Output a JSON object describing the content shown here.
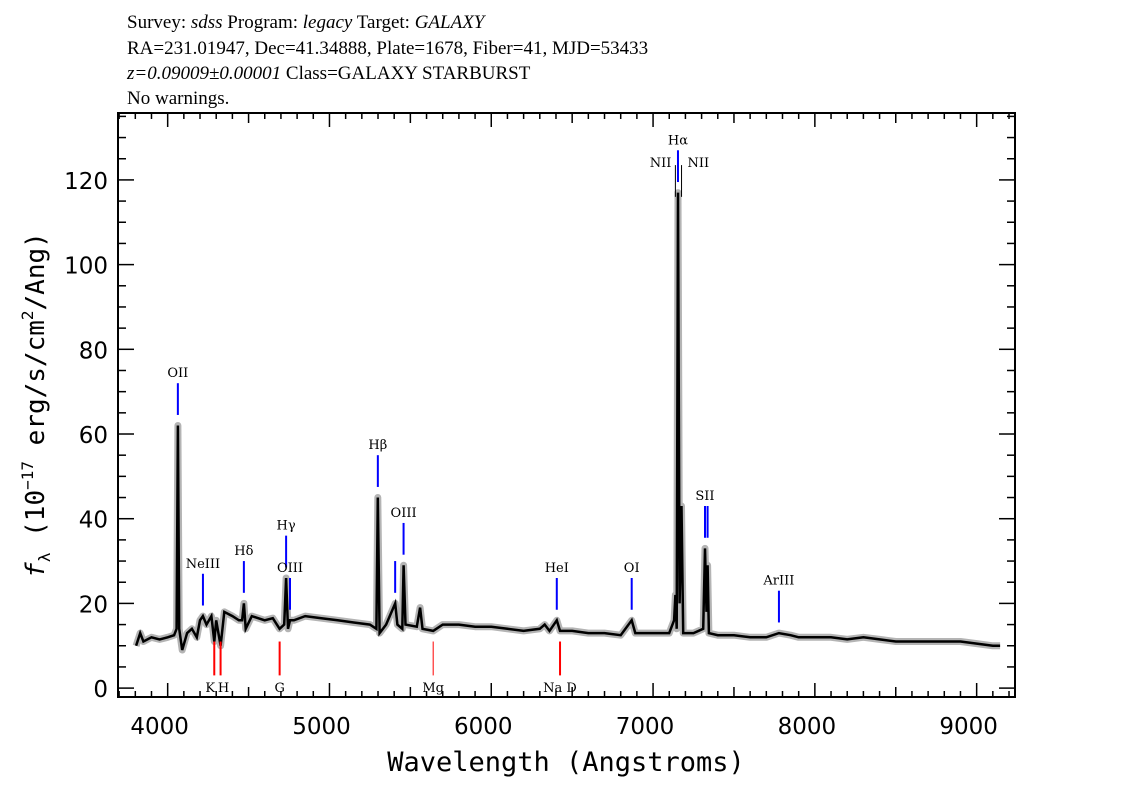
{
  "header": {
    "line1": [
      {
        "t": "Survey: ",
        "i": false
      },
      {
        "t": "sdss",
        "i": true
      },
      {
        "t": " Program: ",
        "i": false
      },
      {
        "t": "legacy",
        "i": true
      },
      {
        "t": " Target: ",
        "i": false
      },
      {
        "t": "GALAXY",
        "i": true
      }
    ],
    "line2": "RA=231.01947, Dec=41.34888, Plate=1678, Fiber=41, MJD=53433",
    "line3_z": "z=0.09009±0.00001",
    "line3_class": " Class=GALAXY STARBURST",
    "line4": "No warnings."
  },
  "chart_data": {
    "type": "line",
    "xlabel": "Wavelength (Angstroms)",
    "ylabel": {
      "f": "f",
      "sub": "λ",
      "main": " (10",
      "sup1": "−17",
      "mid": " erg/s/cm",
      "sup2": "2",
      "end": "/Ang)"
    },
    "xlim": [
      3693,
      9237
    ],
    "ylim": [
      -2.1,
      135.8
    ],
    "xticks": [
      4000,
      5000,
      6000,
      7000,
      8000,
      9000
    ],
    "yticks": [
      0,
      20,
      40,
      60,
      80,
      100,
      120
    ],
    "grid": false,
    "colors": {
      "spectrum": "#000000",
      "error": "#b4b4b4",
      "emission": "#0000ff",
      "absorption": "#ff0000",
      "nii": "#000000"
    },
    "spectrum": [
      [
        3805,
        10
      ],
      [
        3830,
        13
      ],
      [
        3850,
        11
      ],
      [
        3900,
        12
      ],
      [
        3950,
        11.5
      ],
      [
        4000,
        12
      ],
      [
        4040,
        12.5
      ],
      [
        4055,
        14
      ],
      [
        4063,
        62
      ],
      [
        4071,
        14
      ],
      [
        4090,
        9
      ],
      [
        4120,
        13
      ],
      [
        4150,
        14
      ],
      [
        4180,
        12
      ],
      [
        4200,
        16
      ],
      [
        4218,
        17
      ],
      [
        4240,
        15
      ],
      [
        4270,
        17
      ],
      [
        4288,
        11
      ],
      [
        4300,
        16
      ],
      [
        4327,
        10
      ],
      [
        4350,
        18
      ],
      [
        4400,
        17
      ],
      [
        4440,
        16
      ],
      [
        4460,
        16
      ],
      [
        4471,
        20
      ],
      [
        4482,
        14
      ],
      [
        4520,
        17
      ],
      [
        4600,
        16
      ],
      [
        4650,
        16.5
      ],
      [
        4692,
        14
      ],
      [
        4720,
        15
      ],
      [
        4732,
        26
      ],
      [
        4744,
        14
      ],
      [
        4756,
        16
      ],
      [
        4780,
        16
      ],
      [
        4850,
        17
      ],
      [
        4950,
        16.5
      ],
      [
        5050,
        16
      ],
      [
        5150,
        15.5
      ],
      [
        5250,
        15
      ],
      [
        5290,
        14
      ],
      [
        5299,
        45
      ],
      [
        5310,
        13
      ],
      [
        5350,
        15
      ],
      [
        5406,
        20
      ],
      [
        5420,
        15
      ],
      [
        5450,
        14
      ],
      [
        5458,
        29
      ],
      [
        5470,
        15
      ],
      [
        5540,
        14.5
      ],
      [
        5560,
        19
      ],
      [
        5575,
        14
      ],
      [
        5641,
        13.5
      ],
      [
        5700,
        15
      ],
      [
        5800,
        15
      ],
      [
        5900,
        14.5
      ],
      [
        6000,
        14.5
      ],
      [
        6100,
        14
      ],
      [
        6200,
        13.5
      ],
      [
        6300,
        14
      ],
      [
        6330,
        15
      ],
      [
        6360,
        13.5
      ],
      [
        6405,
        16
      ],
      [
        6425,
        13.5
      ],
      [
        6500,
        13.5
      ],
      [
        6600,
        13
      ],
      [
        6700,
        13
      ],
      [
        6800,
        12.5
      ],
      [
        6868,
        16
      ],
      [
        6890,
        13
      ],
      [
        7000,
        13
      ],
      [
        7100,
        13
      ],
      [
        7130,
        16
      ],
      [
        7138,
        22
      ],
      [
        7146,
        14
      ],
      [
        7154,
        117
      ],
      [
        7164,
        20
      ],
      [
        7176,
        43
      ],
      [
        7186,
        13
      ],
      [
        7250,
        13
      ],
      [
        7310,
        14
      ],
      [
        7321,
        33
      ],
      [
        7330,
        18
      ],
      [
        7337,
        29
      ],
      [
        7345,
        13
      ],
      [
        7400,
        12.5
      ],
      [
        7500,
        12.5
      ],
      [
        7600,
        12
      ],
      [
        7700,
        12
      ],
      [
        7778,
        13
      ],
      [
        7850,
        12.5
      ],
      [
        7900,
        12
      ],
      [
        8000,
        12
      ],
      [
        8100,
        12
      ],
      [
        8200,
        11.5
      ],
      [
        8300,
        12
      ],
      [
        8400,
        11.5
      ],
      [
        8500,
        11
      ],
      [
        8600,
        11
      ],
      [
        8700,
        11
      ],
      [
        8800,
        11
      ],
      [
        8900,
        11
      ],
      [
        9000,
        10.5
      ],
      [
        9100,
        10
      ],
      [
        9145,
        10
      ]
    ],
    "emission_lines": [
      {
        "label": "OII",
        "wave": 4063,
        "kind": "emission"
      },
      {
        "label": "NeIII",
        "wave": 4218,
        "kind": "emission"
      },
      {
        "label": "Hδ",
        "wave": 4471,
        "kind": "emission"
      },
      {
        "label": "Hγ",
        "wave": 4732,
        "kind": "emission"
      },
      {
        "label": "OIII",
        "wave": 4756,
        "kind": "emission"
      },
      {
        "label": "Hβ",
        "wave": 5299,
        "kind": "emission"
      },
      {
        "label": "",
        "wave": 5406,
        "kind": "emission"
      },
      {
        "label": "OIII",
        "wave": 5458,
        "kind": "emission"
      },
      {
        "label": "HeI",
        "wave": 6405,
        "kind": "emission"
      },
      {
        "label": "OI",
        "wave": 6868,
        "kind": "emission"
      },
      {
        "label": "NII",
        "wave": 7138,
        "kind": "nii",
        "anchor": "end"
      },
      {
        "label": "Hα",
        "wave": 7154,
        "kind": "emission"
      },
      {
        "label": "NII",
        "wave": 7176,
        "kind": "nii",
        "anchor": "start"
      },
      {
        "label": "SII",
        "wave": 7321,
        "kind": "emission"
      },
      {
        "label": "",
        "wave": 7337,
        "kind": "emission"
      },
      {
        "label": "ArIII",
        "wave": 7778,
        "kind": "emission"
      }
    ],
    "absorption_lines": [
      {
        "label": "K",
        "wave": 4288
      },
      {
        "label": "H",
        "wave": 4327
      },
      {
        "label": "G",
        "wave": 4692
      },
      {
        "label": "Mg",
        "wave": 5641
      },
      {
        "label": "Na D",
        "wave": 6425
      }
    ]
  }
}
